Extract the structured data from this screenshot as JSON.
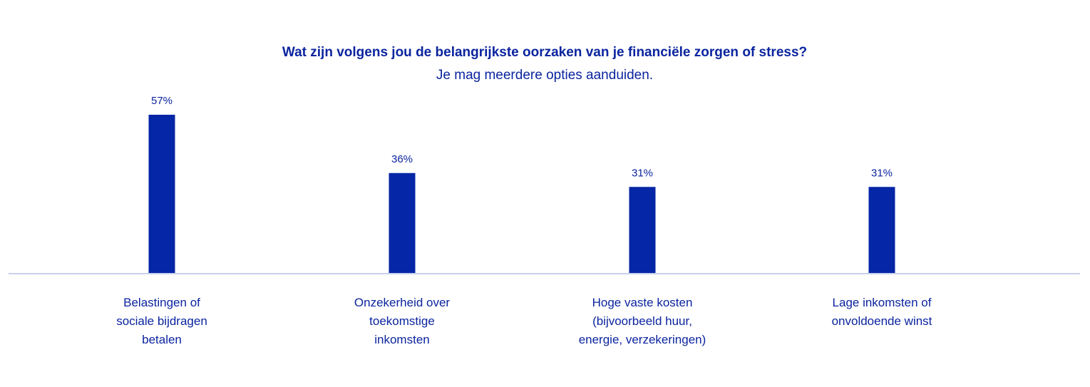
{
  "chart_data": {
    "type": "bar",
    "title": "Wat zijn volgens jou de belangrijkste oorzaken van je financiële zorgen of stress?",
    "subtitle": "Je mag meerdere opties aanduiden.",
    "categories": [
      [
        "Belastingen of",
        "sociale bijdragen",
        "betalen"
      ],
      [
        "Onzekerheid over",
        "toekomstige",
        "inkomsten"
      ],
      [
        "Hoge vaste kosten",
        "(bijvoorbeeld huur,",
        "energie, verzekeringen)"
      ],
      [
        "Lage inkomsten of",
        "onvoldoende winst"
      ]
    ],
    "values": [
      57,
      36,
      31,
      31
    ],
    "value_labels": [
      "57%",
      "36%",
      "31%",
      "31%"
    ],
    "unit": "%",
    "ylim": [
      0,
      57
    ],
    "grid": false,
    "legend": "none",
    "colors": {
      "bar": "#0526a6",
      "text": "#0b249f",
      "baseline": "#c9d0ee"
    }
  }
}
